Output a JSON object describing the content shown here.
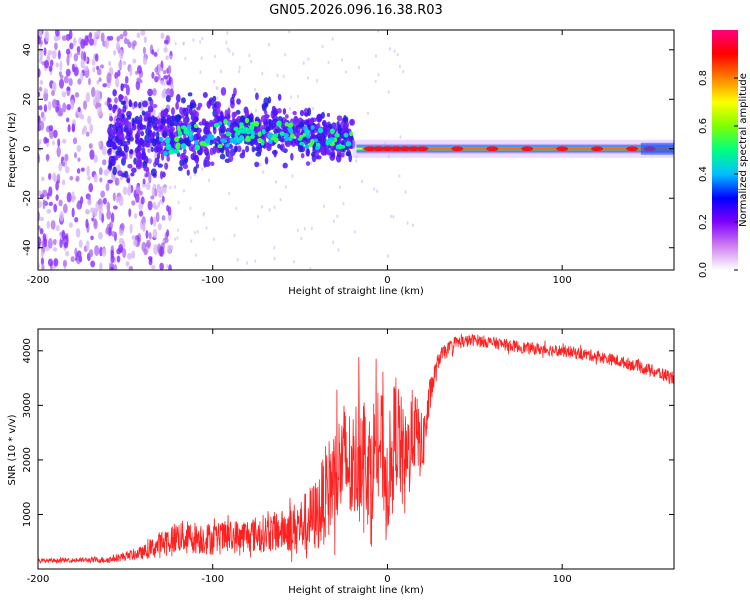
{
  "title": "GN05.2026.096.16.38.R03",
  "chart_data": [
    {
      "type": "heatmap",
      "name": "spectrogram",
      "xlabel": "Height of straight line (km)",
      "ylabel": "Frequency (Hz)",
      "xlim": [
        -200,
        164
      ],
      "ylim": [
        -49,
        48
      ],
      "xticks": [
        -200,
        -100,
        0,
        100
      ],
      "xtick_labels": [
        "-200",
        "-100",
        "0",
        "100"
      ],
      "yticks": [
        -40,
        -20,
        0,
        20,
        40
      ],
      "ytick_labels": [
        "-40",
        "-20",
        "0",
        "20",
        "40"
      ],
      "colorbar": {
        "label": "Normalized spectral amplitude",
        "range": [
          0.0,
          1.0
        ],
        "ticks": [
          0.0,
          0.2,
          0.4,
          0.6,
          0.8
        ],
        "tick_labels": [
          "0.0",
          "0.2",
          "0.4",
          "0.6",
          "0.8"
        ],
        "colors": [
          "#ffffff",
          "#d080f0",
          "#8000ff",
          "#0000ff",
          "#00c0ff",
          "#00ff80",
          "#80ff00",
          "#ffff00",
          "#ff8000",
          "#ff0000",
          "#ff0080"
        ]
      },
      "features": {
        "noise_region_km": [
          -200,
          -133
        ],
        "turbulent_region_km": [
          -160,
          -20
        ],
        "stable_tone_region_km": [
          -20,
          164
        ],
        "tone_frequency_hz": 0
      }
    },
    {
      "type": "line",
      "name": "snr",
      "xlabel": "Height of straight line (km)",
      "ylabel": "SNR (10 * v/v)",
      "xlim": [
        -200,
        164
      ],
      "ylim": [
        0,
        4400
      ],
      "xticks": [
        -200,
        -100,
        0,
        100
      ],
      "xtick_labels": [
        "-200",
        "-100",
        "0",
        "100"
      ],
      "yticks": [
        1000,
        2000,
        3000,
        4000
      ],
      "ytick_labels": [
        "1000",
        "2000",
        "3000",
        "4000"
      ],
      "color": "#ff2020",
      "series": [
        {
          "name": "SNR",
          "x": [
            -200,
            -180,
            -160,
            -140,
            -130,
            -120,
            -100,
            -80,
            -60,
            -50,
            -40,
            -35,
            -30,
            -25,
            -20,
            -15,
            -10,
            -5,
            0,
            5,
            10,
            15,
            20,
            25,
            30,
            40,
            50,
            60,
            80,
            100,
            120,
            140,
            164
          ],
          "y": [
            150,
            160,
            170,
            300,
            450,
            600,
            550,
            620,
            700,
            800,
            1000,
            1400,
            1700,
            2000,
            1800,
            2300,
            1800,
            2500,
            1600,
            2600,
            1800,
            2600,
            2200,
            3300,
            3900,
            4150,
            4200,
            4150,
            4050,
            4000,
            3900,
            3750,
            3500
          ],
          "band": [
            40,
            40,
            60,
            120,
            250,
            300,
            300,
            320,
            380,
            500,
            700,
            900,
            1000,
            1100,
            1100,
            1200,
            1100,
            1100,
            1000,
            1100,
            1000,
            800,
            600,
            300,
            150,
            120,
            110,
            110,
            110,
            110,
            110,
            110,
            130
          ]
        }
      ]
    }
  ]
}
